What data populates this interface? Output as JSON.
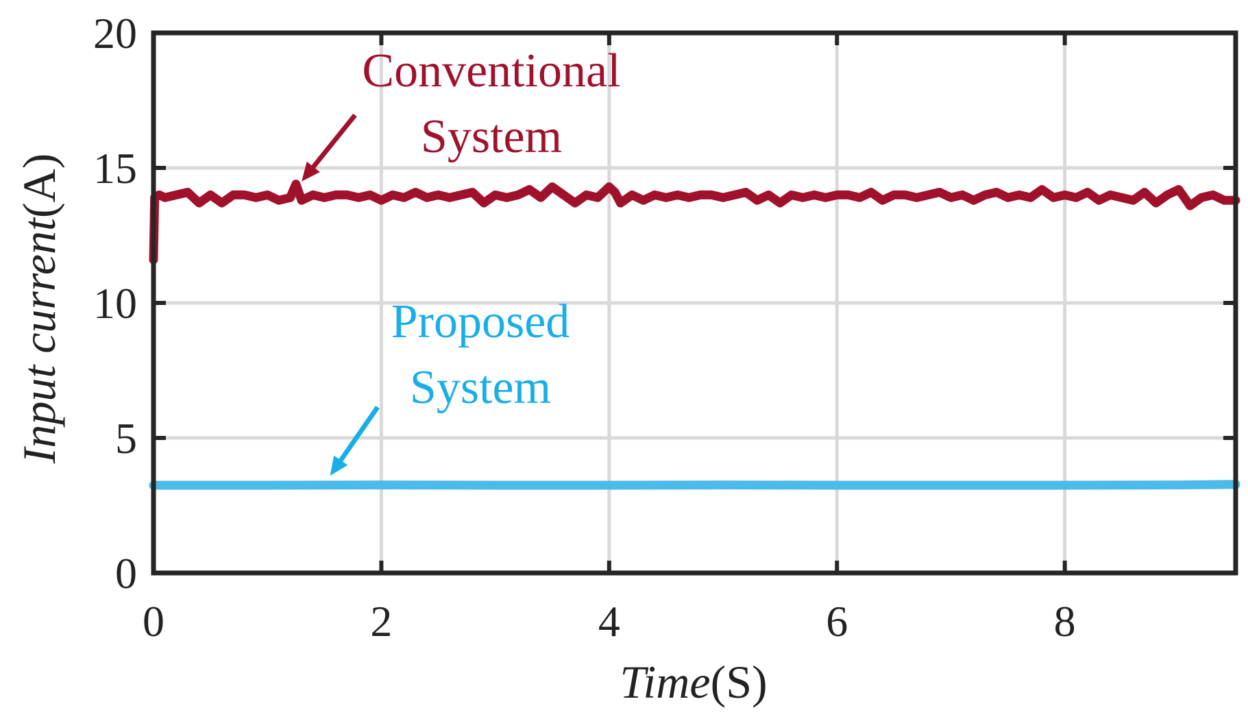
{
  "chart_data": {
    "type": "line",
    "title": "",
    "xlabel": {
      "italic": "Time",
      "unit": "(S)"
    },
    "ylabel": {
      "italic": "Input current",
      "unit": "(A)"
    },
    "xlim": [
      0,
      9.5
    ],
    "ylim": [
      0,
      20
    ],
    "xticks": [
      0,
      2,
      4,
      6,
      8
    ],
    "yticks": [
      0,
      5,
      10,
      15,
      20
    ],
    "grid": true,
    "series": [
      {
        "key": "conventional",
        "color": "#a0122c",
        "x": [
          0,
          0.01,
          0.05,
          0.1,
          0.2,
          0.3,
          0.4,
          0.5,
          0.6,
          0.7,
          0.8,
          0.9,
          1.0,
          1.1,
          1.2,
          1.25,
          1.3,
          1.4,
          1.5,
          1.6,
          1.7,
          1.8,
          1.9,
          2.0,
          2.1,
          2.2,
          2.3,
          2.4,
          2.5,
          2.6,
          2.7,
          2.8,
          2.9,
          3.0,
          3.1,
          3.2,
          3.3,
          3.4,
          3.5,
          3.6,
          3.7,
          3.8,
          3.9,
          4.0,
          4.05,
          4.1,
          4.2,
          4.3,
          4.4,
          4.5,
          4.6,
          4.7,
          4.8,
          4.9,
          5.0,
          5.1,
          5.2,
          5.3,
          5.4,
          5.5,
          5.6,
          5.7,
          5.8,
          5.9,
          6.0,
          6.1,
          6.2,
          6.3,
          6.4,
          6.5,
          6.6,
          6.7,
          6.8,
          6.9,
          7.0,
          7.1,
          7.2,
          7.3,
          7.4,
          7.5,
          7.6,
          7.7,
          7.8,
          7.9,
          8.0,
          8.1,
          8.2,
          8.3,
          8.4,
          8.5,
          8.6,
          8.7,
          8.8,
          8.9,
          9.0,
          9.1,
          9.2,
          9.3,
          9.4,
          9.5
        ],
        "y": [
          11.6,
          13.9,
          14.0,
          13.9,
          14.0,
          14.1,
          13.7,
          14.0,
          13.7,
          14.0,
          14.0,
          13.9,
          14.0,
          13.8,
          13.9,
          14.4,
          13.8,
          14.0,
          13.9,
          14.0,
          14.0,
          13.9,
          14.0,
          13.8,
          14.0,
          13.9,
          14.1,
          13.9,
          14.0,
          13.9,
          14.0,
          14.1,
          13.7,
          14.0,
          13.9,
          14.0,
          14.2,
          13.9,
          14.3,
          14.0,
          13.7,
          14.0,
          13.9,
          14.3,
          14.1,
          13.7,
          14.0,
          13.8,
          14.0,
          13.9,
          14.0,
          13.9,
          14.0,
          14.0,
          13.9,
          14.0,
          14.1,
          13.8,
          14.0,
          13.7,
          14.0,
          13.9,
          14.0,
          13.9,
          14.0,
          14.0,
          13.9,
          14.1,
          13.8,
          14.0,
          14.0,
          13.9,
          14.0,
          14.1,
          13.9,
          14.0,
          13.8,
          14.0,
          14.1,
          13.9,
          14.0,
          13.9,
          14.2,
          13.9,
          14.0,
          13.9,
          14.1,
          13.8,
          14.0,
          13.9,
          13.8,
          14.1,
          13.7,
          14.0,
          14.2,
          13.6,
          13.9,
          14.0,
          13.8,
          13.8
        ]
      },
      {
        "key": "proposed",
        "color": "#4cbbea",
        "x": [
          0,
          1,
          2,
          3,
          4,
          5,
          6,
          7,
          8,
          9,
          9.5
        ],
        "y": [
          3.25,
          3.25,
          3.26,
          3.25,
          3.25,
          3.26,
          3.25,
          3.25,
          3.25,
          3.26,
          3.28
        ]
      }
    ],
    "annotations": [
      {
        "key": "conventional",
        "lines": [
          "Conventional",
          "System"
        ],
        "color": "#a0122c",
        "arrow_to": [
          1.3,
          14.5
        ]
      },
      {
        "key": "proposed",
        "lines": [
          "Proposed",
          "System"
        ],
        "color": "#1aaee8",
        "arrow_to": [
          1.55,
          3.6
        ]
      }
    ]
  }
}
